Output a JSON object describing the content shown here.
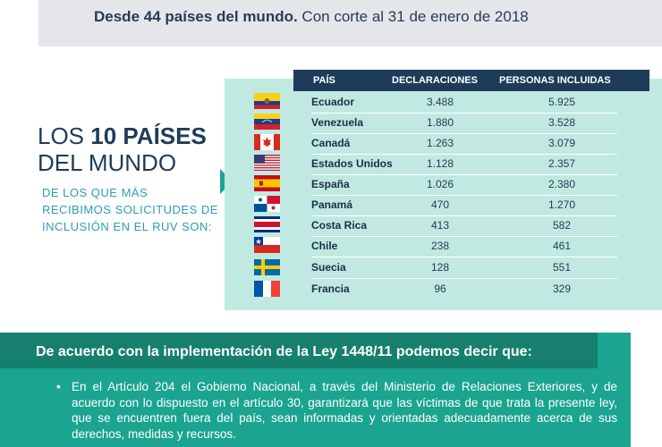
{
  "top": {
    "bold": "Desde 44 países del mundo.",
    "normal": " Con corte al 31 de enero de 2018"
  },
  "headline": {
    "pre": "LOS ",
    "bold": "10 PAÍSES",
    "line2": "DEL MUNDO"
  },
  "subline": {
    "line1": "DE LOS QUE MÁS",
    "line2": "RECIBIMOS SOLICITUDES DE",
    "line3": "INCLUSIÓN EN EL RUV SON:"
  },
  "table": {
    "headers": {
      "country": "PAÍS",
      "declarations": "DECLARACIONES",
      "persons": "PERSONAS INCLUIDAS"
    },
    "rows": [
      {
        "country": "Ecuador",
        "declarations": "3.488",
        "persons": "5.925",
        "flag": "ecuador-flag-icon"
      },
      {
        "country": "Venezuela",
        "declarations": "1.880",
        "persons": "3.528",
        "flag": "venezuela-flag-icon"
      },
      {
        "country": "Canadá",
        "declarations": "1.263",
        "persons": "3.079",
        "flag": "canada-flag-icon"
      },
      {
        "country": "Estados Unidos",
        "declarations": "1.128",
        "persons": "2.357",
        "flag": "usa-flag-icon"
      },
      {
        "country": "España",
        "declarations": "1.026",
        "persons": "2.380",
        "flag": "spain-flag-icon"
      },
      {
        "country": "Panamá",
        "declarations": "470",
        "persons": "1.270",
        "flag": "panama-flag-icon"
      },
      {
        "country": "Costa Rica",
        "declarations": "413",
        "persons": "582",
        "flag": "costa-rica-flag-icon"
      },
      {
        "country": "Chile",
        "declarations": "238",
        "persons": "461",
        "flag": "chile-flag-icon"
      },
      {
        "country": "Suecia",
        "declarations": "128",
        "persons": "551",
        "flag": "sweden-flag-icon"
      },
      {
        "country": "Francia",
        "declarations": "96",
        "persons": "329",
        "flag": "france-flag-icon"
      }
    ]
  },
  "bottom": {
    "title": "De acuerdo con la implementación de la Ley 1448/11 podemos decir que:",
    "bullet": "•",
    "text": "En el Artículo 204 el Gobierno Nacional, a través del Ministerio de Relaciones Exteriores, y de acuerdo con lo dispuesto en el artículo 30, garantizará que las víctimas de que trata la presente ley, que se encuentren fuera del país, sean informadas y orientadas adecuadamente acerca de sus derechos, medidas y recursos."
  },
  "colors": {
    "navy": "#1f3b5a",
    "teal_panel": "#bfe9e1",
    "teal_bottom": "#1ba48f",
    "teal_dark": "#167f6e",
    "accent_blue": "#2e9bb5"
  }
}
